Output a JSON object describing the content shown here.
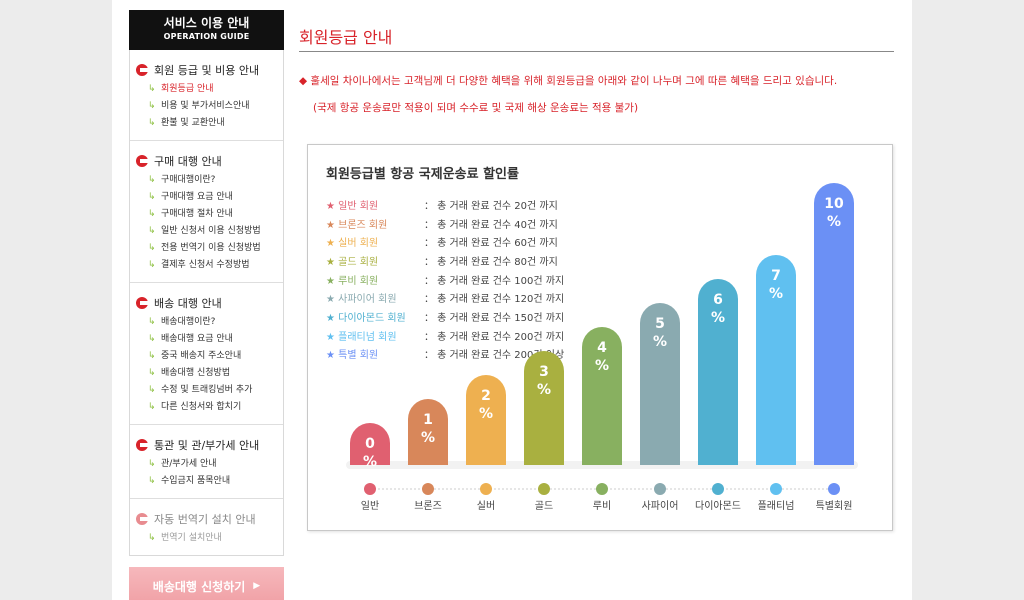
{
  "sidebar": {
    "header_title": "서비스 이용 안내",
    "header_subtitle": "OPERATION GUIDE",
    "groups": [
      {
        "title": "회원 등급 및 비용 안내",
        "items": [
          "회원등급 안내",
          "비용 및 부가서비스안내",
          "환불 및 교환안내"
        ]
      },
      {
        "title": "구매 대행 안내",
        "items": [
          "구매대행이란?",
          "구매대행 요금 안내",
          "구매대행 절차 안내",
          "일반 신청서 이용 신청방법",
          "전용 번역기 이용 신청방법",
          "결제후 신청서 수정방법"
        ]
      },
      {
        "title": "배송 대행 안내",
        "items": [
          "배송대행이란?",
          "배송대행 요금 안내",
          "중국 배송지 주소안내",
          "배송대행 신청방법",
          "수정 및 트래킹넘버 추가",
          "다른 신청서와 합치기"
        ]
      },
      {
        "title": "통관 및 관/부가세 안내",
        "items": [
          "관/부가세 안내",
          "수입금지 품목안내"
        ]
      },
      {
        "title": "자동 번역기 설치 안내",
        "items": [
          "번역기 설치안내"
        ]
      }
    ],
    "apply_button": "배송대행 신청하기"
  },
  "main": {
    "title": "회원등급 안내",
    "notice_line1": "◆ 훌세일 차이나에서는 고객님께 더 다양한 혜택을 위해 회원등급을 아래와 같이 나누며 그에 따른 혜택을 드리고 있습니다.",
    "notice_line2": "(국제 항공 운송료만 적용이 되며 수수료 및 국제 해상 운송료는 적용 불가)"
  },
  "chart_data": {
    "type": "bar",
    "title": "회원등급별  항공 국제운송료 할인률",
    "categories": [
      "일반",
      "브론즈",
      "실버",
      "골드",
      "루비",
      "사파이어",
      "다이아몬드",
      "플래티넘",
      "특별회원"
    ],
    "values": [
      0,
      1,
      2,
      3,
      4,
      5,
      6,
      7,
      10
    ],
    "labels": [
      "0 %",
      "1 %",
      "2 %",
      "3 %",
      "4 %",
      "5 %",
      "6 %",
      "7 %",
      "10 %"
    ],
    "colors": [
      "#e06070",
      "#d8875a",
      "#eeb050",
      "#a9b040",
      "#88b060",
      "#8aaab0",
      "#50b0d0",
      "#60c0f0",
      "#6b90f5"
    ],
    "tiers": [
      {
        "name": "★ 일반 회원",
        "condition": "： 총 거래 완료 건수 20건 까지"
      },
      {
        "name": "★ 브론즈 회원",
        "condition": "： 총 거래 완료 건수 40건 까지"
      },
      {
        "name": "★ 실버 회원",
        "condition": "： 총 거래 완료 건수 60건 까지"
      },
      {
        "name": "★ 골드 회원",
        "condition": "： 총 거래 완료 건수 80건 까지"
      },
      {
        "name": "★ 루비 회원",
        "condition": "： 총 거래 완료 건수 100건 까지"
      },
      {
        "name": "★ 사파이어 회원",
        "condition": "： 총 거래 완료 건수 120건 까지"
      },
      {
        "name": "★ 다이아몬드 회원",
        "condition": "： 총 거래 완료 건수 150건 까지"
      },
      {
        "name": "★ 플래티넘 회원",
        "condition": "： 총 거래 완료 건수 200건 까지"
      },
      {
        "name": "★ 특별 회원",
        "condition": "： 총 거래 완료 건수 200건 이상"
      }
    ]
  }
}
